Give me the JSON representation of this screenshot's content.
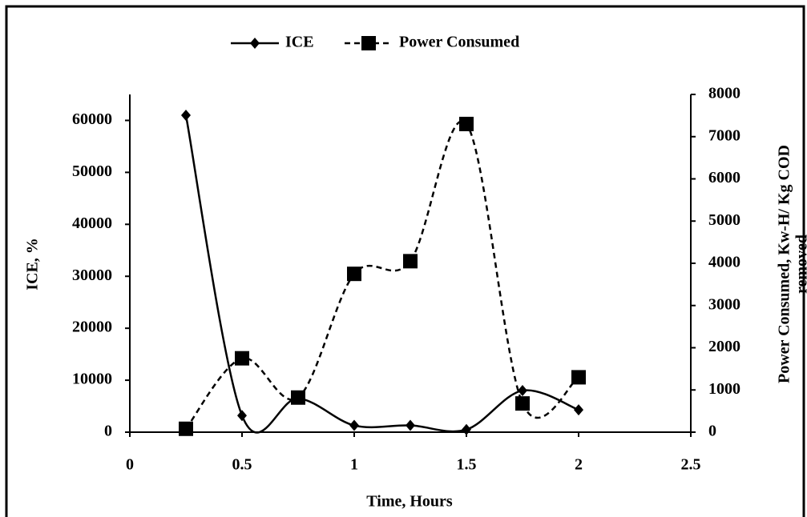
{
  "chart_data": {
    "type": "line",
    "x": [
      0.25,
      0.5,
      0.75,
      1,
      1.25,
      1.5,
      1.75,
      2
    ],
    "series": [
      {
        "name": "ICE",
        "color": "#000000",
        "marker": "diamond",
        "dash": false,
        "values": [
          61000,
          3200,
          6500,
          1300,
          1300,
          500,
          8000,
          4300
        ]
      },
      {
        "name": "Power Consumed",
        "color": "#000000",
        "marker": "square",
        "dash": true,
        "axis": "y2",
        "values": [
          80,
          1750,
          820,
          3750,
          4050,
          7300,
          680,
          1300
        ]
      }
    ],
    "xlabel": "Time, Hours",
    "ylabel": "ICE, %",
    "y2label": [
      "Power Consumed, Kw-H/ Kg COD",
      "removed"
    ],
    "xlim": [
      0,
      2.5
    ],
    "xticks": [
      0,
      0.5,
      1,
      1.5,
      2,
      2.5
    ],
    "ylim": [
      0,
      65000
    ],
    "yticks": [
      0,
      10000,
      20000,
      30000,
      40000,
      50000,
      60000
    ],
    "y2lim": [
      0,
      8000
    ],
    "y2ticks": [
      0,
      1000,
      2000,
      3000,
      4000,
      5000,
      6000,
      7000,
      8000
    ],
    "smooth": true,
    "legend": "top"
  }
}
